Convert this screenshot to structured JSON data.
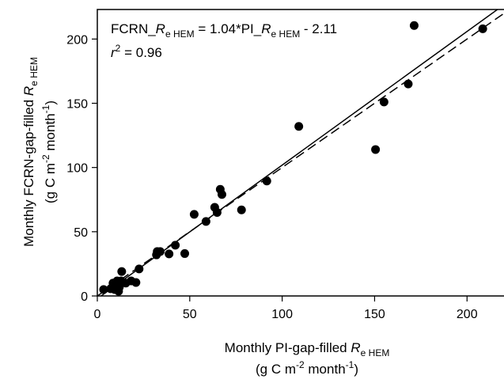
{
  "chart_data": {
    "type": "scatter",
    "x": [
      171.4,
      208.5,
      168.2,
      155.1,
      150.5,
      109.0,
      91.7,
      78.0,
      66.5,
      67.4,
      63.5,
      64.8,
      58.8,
      52.4,
      47.3,
      42.2,
      38.8,
      34.0,
      32.4,
      32.0,
      22.6,
      20.9,
      18.3,
      15.4,
      13.2,
      12.8,
      10.7,
      11.9,
      10.2,
      9.4,
      11.5,
      7.2,
      3.4,
      8.5
    ],
    "series": [
      {
        "color": "#000000",
        "values": [
          210.5,
          208.0,
          165.0,
          151.0,
          114.0,
          132.0,
          89.5,
          67.0,
          83.0,
          79.0,
          69.0,
          65.0,
          58.0,
          63.5,
          33.0,
          39.5,
          32.7,
          34.6,
          34.6,
          32.0,
          21.0,
          10.5,
          11.7,
          10.0,
          19.0,
          11.7,
          11.7,
          6.8,
          8.6,
          5.0,
          3.7,
          5.6,
          5.0,
          10.0
        ]
      }
    ],
    "lines": [
      {
        "slope": 1.04,
        "intercept": -2.11,
        "dash": false
      },
      {
        "slope": 1,
        "intercept": 0,
        "dash": true
      }
    ],
    "equation": [
      {
        "text": "FCRN_",
        "style": "normal"
      },
      {
        "text": "R",
        "style": "italic"
      },
      {
        "text": "e HEM",
        "style": "sub"
      },
      {
        "text": " = 1.04*PI_",
        "style": "normal"
      },
      {
        "text": "R",
        "style": "italic"
      },
      {
        "text": "e HEM",
        "style": "sub"
      },
      {
        "text": " - 2.11",
        "style": "normal"
      }
    ],
    "r_squared": [
      {
        "text": "r",
        "style": "italic"
      },
      {
        "text": "2",
        "style": "sup"
      },
      {
        "text": " = 0.96",
        "style": "normal"
      }
    ],
    "x_label": [
      [
        {
          "text": "Monthly PI-gap-filled ",
          "style": "normal"
        },
        {
          "text": "R",
          "style": "italic"
        },
        {
          "text": "e HEM",
          "style": "sub"
        }
      ],
      [
        {
          "text": "(g C m",
          "style": "normal"
        },
        {
          "text": "-2",
          "style": "sup"
        },
        {
          "text": " month",
          "style": "normal"
        },
        {
          "text": "-1",
          "style": "sup"
        },
        {
          "text": ")",
          "style": "normal"
        }
      ]
    ],
    "y_label": [
      [
        {
          "text": "Monthly FCRN-gap-filled ",
          "style": "normal"
        },
        {
          "text": "R",
          "style": "italic"
        },
        {
          "text": "e HEM",
          "style": "sub"
        }
      ],
      [
        {
          "text": "(g C m",
          "style": "normal"
        },
        {
          "text": "-2",
          "style": "sup"
        },
        {
          "text": " month",
          "style": "normal"
        },
        {
          "text": "-1",
          "style": "sup"
        },
        {
          "text": ")",
          "style": "normal"
        }
      ]
    ],
    "xlim": [
      0,
      220
    ],
    "ylim": [
      0,
      223
    ],
    "xticks": [
      0,
      50,
      100,
      150,
      200
    ],
    "yticks": [
      0,
      50,
      100,
      150,
      200
    ]
  }
}
